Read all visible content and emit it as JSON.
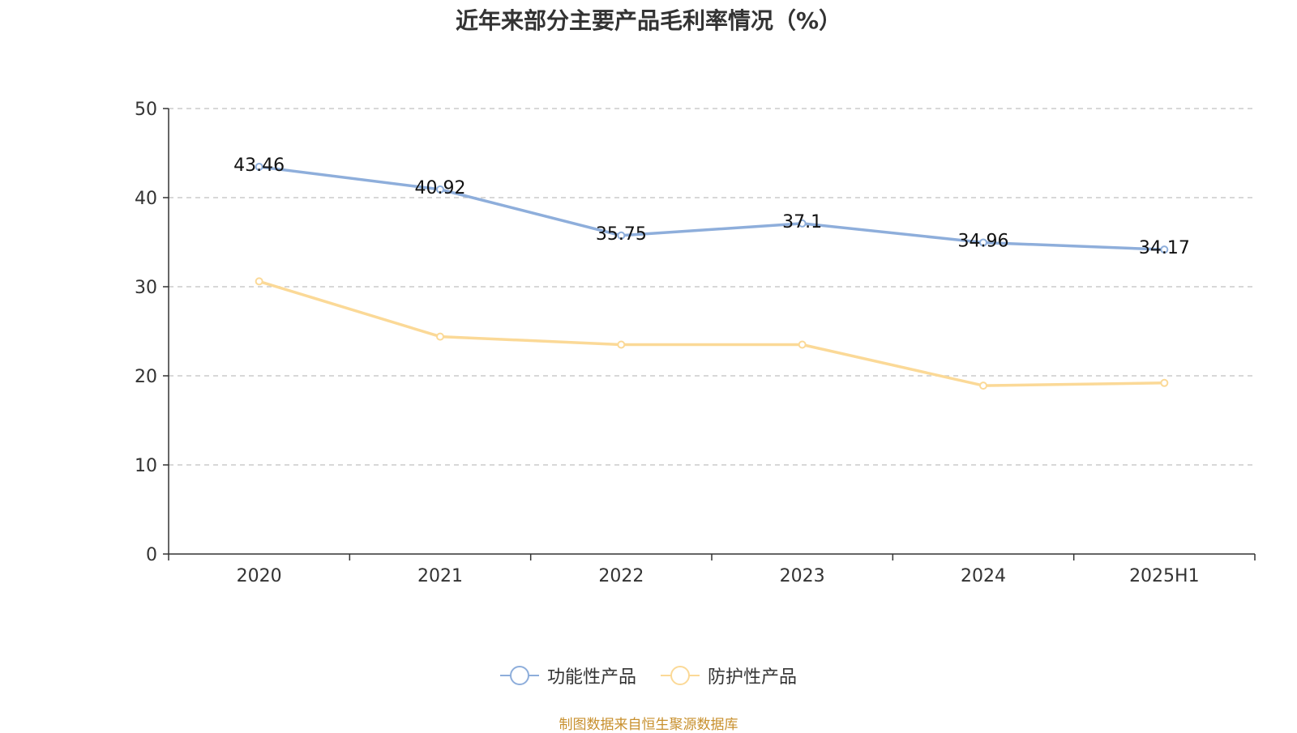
{
  "chart_data": {
    "type": "line",
    "title": "近年来部分主要产品毛利率情况（%）",
    "categories": [
      "2020",
      "2021",
      "2022",
      "2023",
      "2024",
      "2025H1"
    ],
    "ylim": [
      0,
      50
    ],
    "yticks": [
      "0",
      "10",
      "20",
      "30",
      "40",
      "50"
    ],
    "grid": true,
    "legend_position": "bottom",
    "series": [
      {
        "name": "功能性产品",
        "color": "#8eaedb",
        "values": [
          43.46,
          40.92,
          35.75,
          37.1,
          34.96,
          34.17
        ],
        "labels": [
          "43.46",
          "40.92",
          "35.75",
          "37.1",
          "34.96",
          "34.17"
        ]
      },
      {
        "name": "防护性产品",
        "color": "#fbd997",
        "values": [
          30.6,
          24.4,
          23.5,
          23.5,
          18.9,
          19.2
        ]
      }
    ],
    "source": "制图数据来自恒生聚源数据库"
  }
}
